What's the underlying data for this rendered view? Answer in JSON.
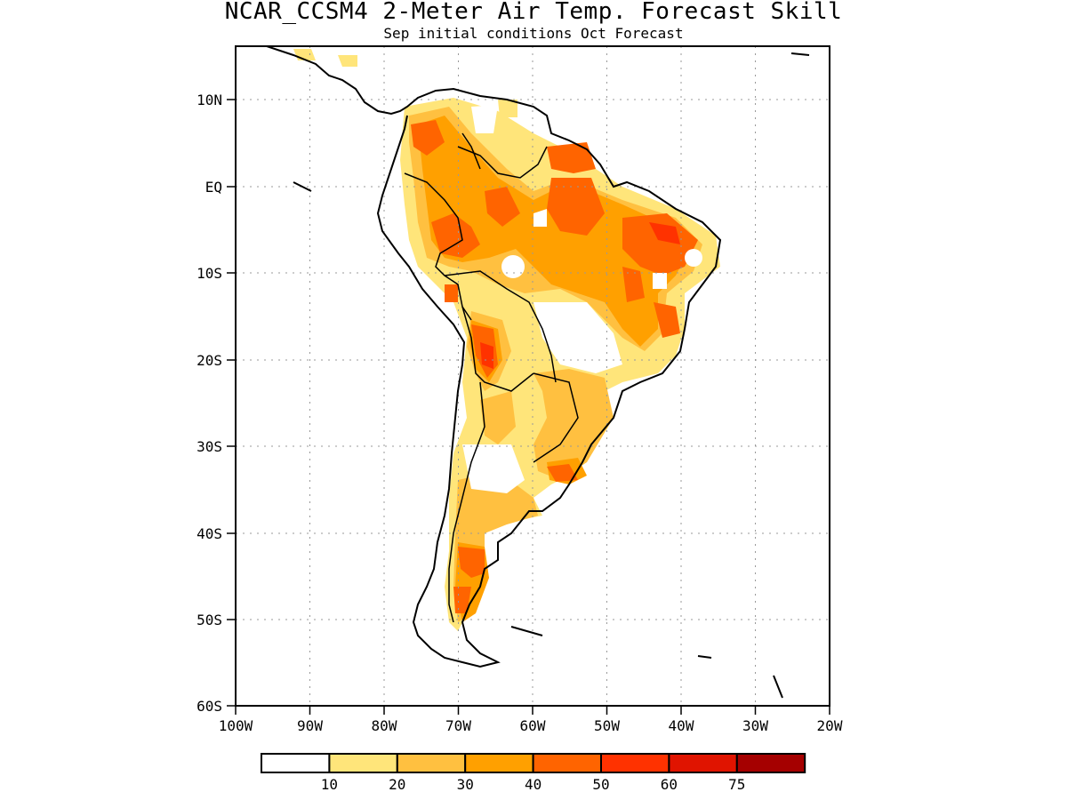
{
  "title": "NCAR_CCSM4 2-Meter Air Temp. Forecast Skill",
  "subtitle": "Sep initial conditions  Oct Forecast",
  "map": {
    "lon_range": [
      -100,
      -20
    ],
    "lat_range": [
      -60,
      15
    ],
    "x_ticks": [
      "100W",
      "90W",
      "80W",
      "70W",
      "60W",
      "50W",
      "40W",
      "30W",
      "20W"
    ],
    "y_ticks": [
      "10N",
      "EQ",
      "10S",
      "20S",
      "30S",
      "40S",
      "50S",
      "60S"
    ],
    "grid": "dotted"
  },
  "colorbar": {
    "colors": [
      "#ffffff",
      "#ffe57a",
      "#ffc040",
      "#ffa000",
      "#ff6400",
      "#ff3200",
      "#e01400",
      "#a50000"
    ],
    "labels": [
      "10",
      "20",
      "30",
      "40",
      "50",
      "60",
      "75"
    ]
  }
}
